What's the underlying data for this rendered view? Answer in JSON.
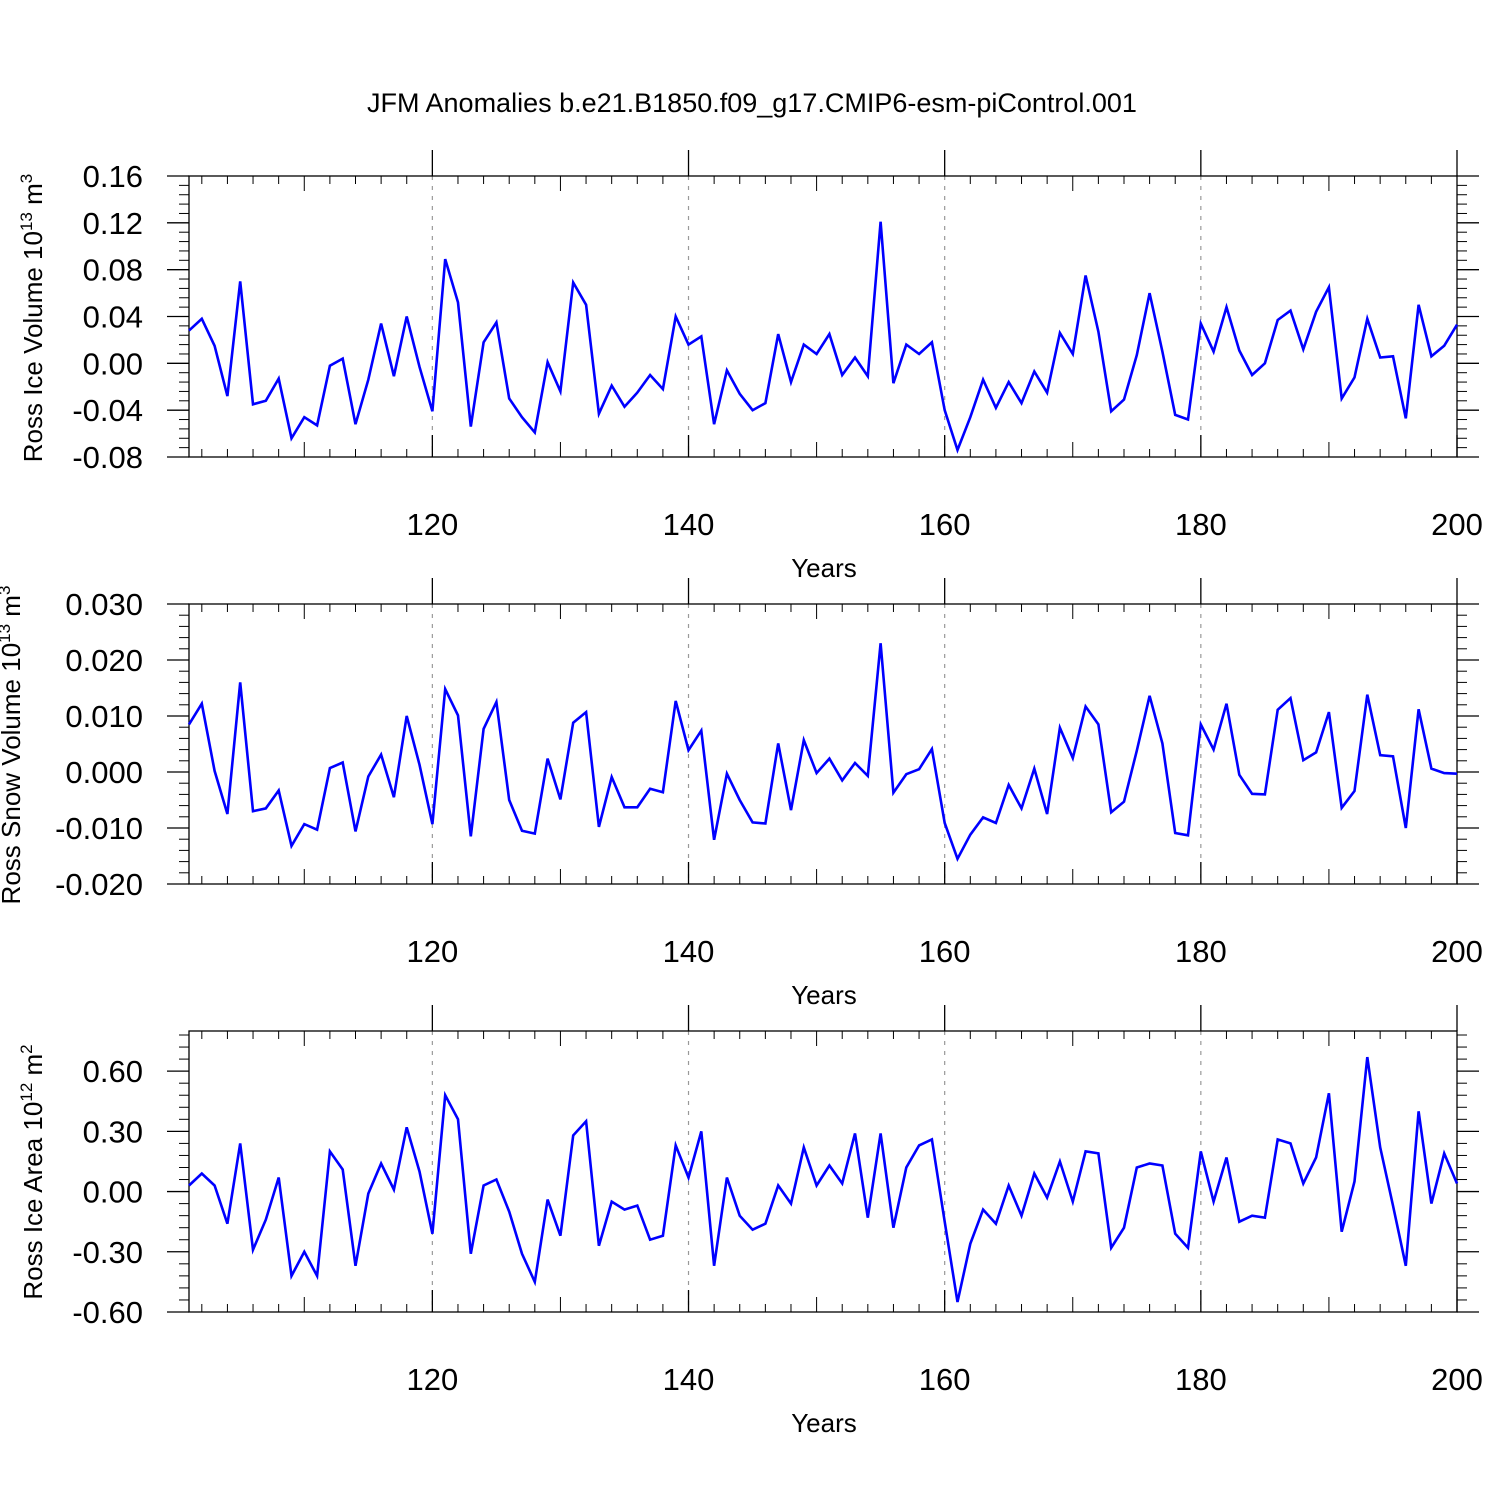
{
  "title": "JFM Anomalies b.e21.B1850.f09_g17.CMIP6-esm-piControl.001",
  "colors": {
    "series": "#0000ff",
    "axis": "#000000",
    "grid": "#999999"
  },
  "chart_data": [
    {
      "type": "line",
      "ylabel_main": "Ross Ice Volume 10",
      "ylabel_exp": "13",
      "ylabel_unit": " m",
      "ylabel_unit_exp": "3",
      "xlabel": "Years",
      "xlim": [
        101,
        200
      ],
      "ylim": [
        -0.08,
        0.16
      ],
      "xticks": [
        120,
        140,
        160,
        180,
        200
      ],
      "xtick_labels": [
        "120",
        "140",
        "160",
        "180",
        "200"
      ],
      "yticks": [
        -0.08,
        -0.04,
        0.0,
        0.04,
        0.08,
        0.12,
        0.16
      ],
      "ytick_labels": [
        "-0.08",
        "-0.04",
        "0.00",
        "0.04",
        "0.08",
        "0.12",
        "0.16"
      ],
      "x_start": 101,
      "values": [
        0.028,
        0.038,
        0.015,
        -0.028,
        0.07,
        -0.035,
        -0.032,
        -0.013,
        -0.064,
        -0.046,
        -0.053,
        -0.002,
        0.004,
        -0.052,
        -0.014,
        0.034,
        -0.011,
        0.04,
        -0.003,
        -0.041,
        0.089,
        0.052,
        -0.054,
        0.018,
        0.035,
        -0.03,
        -0.046,
        -0.059,
        0.001,
        -0.024,
        0.069,
        0.05,
        -0.043,
        -0.019,
        -0.037,
        -0.025,
        -0.01,
        -0.022,
        0.04,
        0.016,
        0.023,
        -0.052,
        -0.006,
        -0.026,
        -0.04,
        -0.034,
        0.025,
        -0.016,
        0.016,
        0.008,
        0.025,
        -0.01,
        0.005,
        -0.011,
        0.121,
        -0.017,
        0.016,
        0.008,
        0.018,
        -0.04,
        -0.074,
        -0.046,
        -0.014,
        -0.038,
        -0.016,
        -0.034,
        -0.007,
        -0.025,
        0.026,
        0.008,
        0.075,
        0.027,
        -0.041,
        -0.031,
        0.007,
        0.06,
        0.01,
        -0.044,
        -0.048,
        0.034,
        0.01,
        0.048,
        0.011,
        -0.01,
        0.0,
        0.037,
        0.045,
        0.012,
        0.044,
        0.065,
        -0.03,
        -0.012,
        0.038,
        0.005,
        0.006,
        -0.047,
        0.05,
        0.006,
        0.015,
        0.033
      ]
    },
    {
      "type": "line",
      "ylabel_main": "Ross Snow Volume 10",
      "ylabel_exp": "13",
      "ylabel_unit": " m",
      "ylabel_unit_exp": "3",
      "xlabel": "Years",
      "xlim": [
        101,
        200
      ],
      "ylim": [
        -0.02,
        0.03
      ],
      "xticks": [
        120,
        140,
        160,
        180,
        200
      ],
      "xtick_labels": [
        "120",
        "140",
        "160",
        "180",
        "200"
      ],
      "yticks": [
        -0.02,
        -0.01,
        0.0,
        0.01,
        0.02,
        0.03
      ],
      "ytick_labels": [
        "-0.020",
        "-0.010",
        "0.000",
        "0.010",
        "0.020",
        "0.030"
      ],
      "x_start": 101,
      "values": [
        0.0085,
        0.0122,
        0.0002,
        -0.0075,
        0.016,
        -0.007,
        -0.0065,
        -0.0033,
        -0.0132,
        -0.0093,
        -0.0103,
        0.0007,
        0.0017,
        -0.0106,
        -0.0008,
        0.0031,
        -0.0045,
        0.01,
        0.0013,
        -0.0093,
        0.0148,
        0.0101,
        -0.0115,
        0.0077,
        0.0125,
        -0.005,
        -0.0105,
        -0.011,
        0.0024,
        -0.0049,
        0.0088,
        0.0107,
        -0.0098,
        -0.0009,
        -0.0063,
        -0.0063,
        -0.003,
        -0.0036,
        0.0127,
        0.0039,
        0.0074,
        -0.0121,
        -0.0003,
        -0.005,
        -0.009,
        -0.0092,
        0.0051,
        -0.0068,
        0.0057,
        -0.0002,
        0.0024,
        -0.0015,
        0.0016,
        -0.0007,
        0.023,
        -0.0037,
        -0.0004,
        0.0005,
        0.0041,
        -0.0091,
        -0.0155,
        -0.0112,
        -0.0081,
        -0.0091,
        -0.0023,
        -0.0065,
        0.0006,
        -0.0075,
        0.0079,
        0.0025,
        0.0117,
        0.0085,
        -0.0072,
        -0.0053,
        0.0038,
        0.0136,
        0.0051,
        -0.0109,
        -0.0113,
        0.0085,
        0.004,
        0.0122,
        -0.0005,
        -0.0039,
        -0.004,
        0.0111,
        0.0132,
        0.0021,
        0.0035,
        0.0107,
        -0.0064,
        -0.0034,
        0.0138,
        0.003,
        0.0028,
        -0.01,
        0.0112,
        0.0006,
        -0.0002,
        -0.0003
      ]
    },
    {
      "type": "line",
      "ylabel_main": "Ross Ice Area 10",
      "ylabel_exp": "12",
      "ylabel_unit": " m",
      "ylabel_unit_exp": "2",
      "xlabel": "Years",
      "xlim": [
        101,
        200
      ],
      "ylim": [
        -0.6,
        0.8
      ],
      "xticks": [
        120,
        140,
        160,
        180,
        200
      ],
      "xtick_labels": [
        "120",
        "140",
        "160",
        "180",
        "200"
      ],
      "yticks": [
        -0.6,
        -0.3,
        0.0,
        0.3,
        0.6
      ],
      "ytick_labels": [
        "-0.60",
        "-0.30",
        "0.00",
        "0.30",
        "0.60"
      ],
      "x_start": 101,
      "values": [
        0.03,
        0.09,
        0.03,
        -0.16,
        0.24,
        -0.29,
        -0.14,
        0.07,
        -0.42,
        -0.3,
        -0.42,
        0.2,
        0.11,
        -0.37,
        -0.01,
        0.14,
        0.01,
        0.32,
        0.1,
        -0.21,
        0.48,
        0.36,
        -0.31,
        0.03,
        0.06,
        -0.1,
        -0.31,
        -0.45,
        -0.04,
        -0.22,
        0.28,
        0.35,
        -0.27,
        -0.05,
        -0.09,
        -0.07,
        -0.24,
        -0.22,
        0.23,
        0.07,
        0.3,
        -0.37,
        0.07,
        -0.12,
        -0.19,
        -0.16,
        0.03,
        -0.06,
        0.22,
        0.03,
        0.13,
        0.04,
        0.29,
        -0.13,
        0.29,
        -0.18,
        0.12,
        0.23,
        0.26,
        -0.15,
        -0.55,
        -0.26,
        -0.09,
        -0.16,
        0.03,
        -0.12,
        0.09,
        -0.03,
        0.15,
        -0.05,
        0.2,
        0.19,
        -0.28,
        -0.18,
        0.12,
        0.14,
        0.13,
        -0.21,
        -0.28,
        0.2,
        -0.05,
        0.17,
        -0.15,
        -0.12,
        -0.13,
        0.26,
        0.24,
        0.04,
        0.17,
        0.49,
        -0.2,
        0.05,
        0.67,
        0.22,
        -0.07,
        -0.37,
        0.4,
        -0.06,
        0.19,
        0.04
      ]
    }
  ]
}
